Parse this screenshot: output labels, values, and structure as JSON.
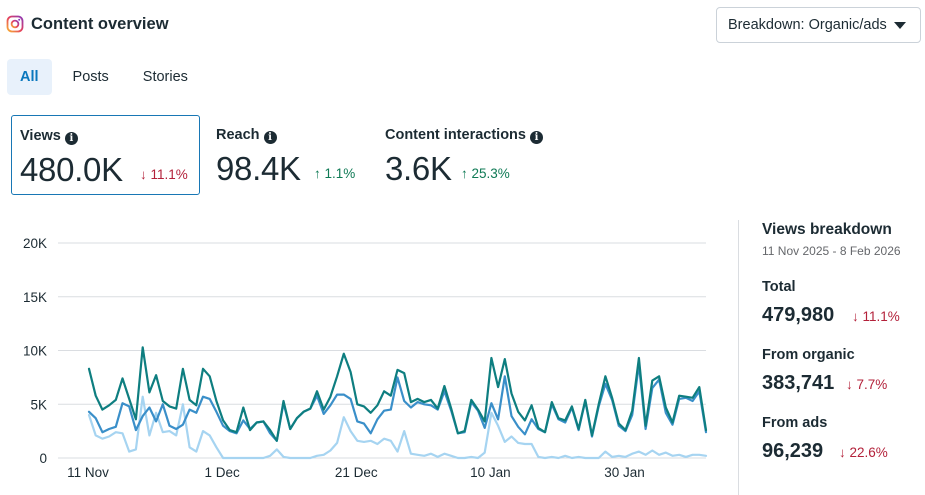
{
  "header": {
    "title": "Content overview",
    "breakdown_button": "Breakdown: Organic/ads"
  },
  "tabs": [
    {
      "label": "All",
      "active": true
    },
    {
      "label": "Posts",
      "active": false
    },
    {
      "label": "Stories",
      "active": false
    }
  ],
  "metrics": [
    {
      "label": "Views",
      "value": "480.0K",
      "change": "11.1%",
      "direction": "down"
    },
    {
      "label": "Reach",
      "value": "98.4K",
      "change": "1.1%",
      "direction": "up"
    },
    {
      "label": "Content interactions",
      "value": "3.6K",
      "change": "25.3%",
      "direction": "up"
    }
  ],
  "arrows": {
    "down": "↓",
    "up": "↑"
  },
  "colors": {
    "total": "#0e7e80",
    "organic": "#3a8fc9",
    "ads": "#a6d4f1",
    "grid": "#dadde1",
    "down": "#b3213a",
    "up": "#0f7a55",
    "accent": "#1877b5"
  },
  "breakdown": {
    "title": "Views breakdown",
    "range": "11 Nov 2025 - 8 Feb 2026",
    "items": [
      {
        "label": "Total",
        "value": "479,980",
        "change": "11.1%",
        "direction": "down"
      },
      {
        "label": "From organic",
        "value": "383,741",
        "change": "7.7%",
        "direction": "down"
      },
      {
        "label": "From ads",
        "value": "96,239",
        "change": "22.6%",
        "direction": "down"
      }
    ]
  },
  "chart_data": {
    "type": "line",
    "title": "",
    "xlabel": "",
    "ylabel": "",
    "ylim": [
      0,
      20000
    ],
    "yticks": [
      0,
      5000,
      10000,
      15000,
      20000
    ],
    "ytick_labels": [
      "0",
      "5K",
      "10K",
      "15K",
      "20K"
    ],
    "xtick_labels": [
      {
        "label": "11 Nov",
        "index": 0
      },
      {
        "label": "1 Dec",
        "index": 20
      },
      {
        "label": "21 Dec",
        "index": 40
      },
      {
        "label": "10 Jan",
        "index": 60
      },
      {
        "label": "30 Jan",
        "index": 80
      }
    ],
    "series": [
      {
        "name": "Total",
        "color_key": "total",
        "values": [
          8300,
          5800,
          4500,
          4900,
          5400,
          7400,
          5500,
          3600,
          10300,
          6100,
          7700,
          5300,
          4800,
          4600,
          8300,
          5400,
          4900,
          8300,
          7600,
          5300,
          3500,
          2600,
          2400,
          4700,
          2600,
          3300,
          3400,
          2600,
          1600,
          5300,
          2700,
          3700,
          4300,
          4600,
          6200,
          4500,
          5700,
          7600,
          9700,
          8000,
          5000,
          4800,
          4200,
          4900,
          6200,
          5800,
          8200,
          7900,
          5200,
          5500,
          5200,
          5400,
          4600,
          6700,
          4600,
          2300,
          2500,
          5400,
          4500,
          3400,
          9300,
          6600,
          9200,
          6000,
          4300,
          3500,
          4900,
          2800,
          2400,
          5200,
          3700,
          3500,
          4800,
          2700,
          5400,
          2100,
          5000,
          7600,
          5600,
          3200,
          2600,
          4400,
          9300,
          3000,
          7200,
          7600,
          4700,
          3300,
          5800,
          5700,
          5600,
          6600,
          2600
        ]
      },
      {
        "name": "From organic",
        "color_key": "organic",
        "values": [
          4300,
          3700,
          2400,
          2700,
          2900,
          5100,
          4800,
          2600,
          3900,
          4700,
          3400,
          5000,
          3000,
          2700,
          3100,
          4500,
          4200,
          5700,
          5500,
          4300,
          3000,
          2500,
          2300,
          3500,
          2700,
          3300,
          3400,
          2300,
          1600,
          5100,
          2700,
          3700,
          4300,
          4600,
          5800,
          4100,
          4900,
          5900,
          5900,
          5500,
          3400,
          3200,
          2300,
          3600,
          4400,
          4500,
          7500,
          5300,
          4700,
          5200,
          5000,
          4900,
          4500,
          6200,
          4400,
          2300,
          2400,
          5200,
          4400,
          2800,
          5100,
          3600,
          7600,
          3900,
          2900,
          2200,
          3600,
          2700,
          2400,
          5000,
          3600,
          3300,
          4700,
          2600,
          5300,
          2000,
          4800,
          6900,
          5400,
          3000,
          2500,
          4000,
          8700,
          2700,
          6500,
          7300,
          4200,
          3100,
          5500,
          5600,
          5300,
          6200,
          2400
        ]
      },
      {
        "name": "From ads",
        "color_key": "ads",
        "values": [
          4000,
          2100,
          1800,
          2000,
          2400,
          2300,
          600,
          800,
          5700,
          2100,
          4200,
          2400,
          2500,
          2100,
          5000,
          1000,
          600,
          2500,
          2100,
          1000,
          0,
          0,
          0,
          0,
          0,
          0,
          0,
          200,
          800,
          100,
          0,
          0,
          0,
          0,
          200,
          300,
          700,
          1400,
          3800,
          2500,
          1600,
          1500,
          1600,
          1300,
          1800,
          1600,
          600,
          2500,
          400,
          300,
          200,
          400,
          100,
          400,
          200,
          0,
          0,
          100,
          0,
          500,
          4200,
          3000,
          1500,
          2000,
          1400,
          1300,
          1300,
          100,
          0,
          100,
          0,
          200,
          0,
          100,
          0,
          0,
          0,
          600,
          100,
          200,
          100,
          400,
          600,
          300,
          700,
          300,
          500,
          200,
          300,
          100,
          300,
          300,
          200
        ]
      }
    ]
  }
}
